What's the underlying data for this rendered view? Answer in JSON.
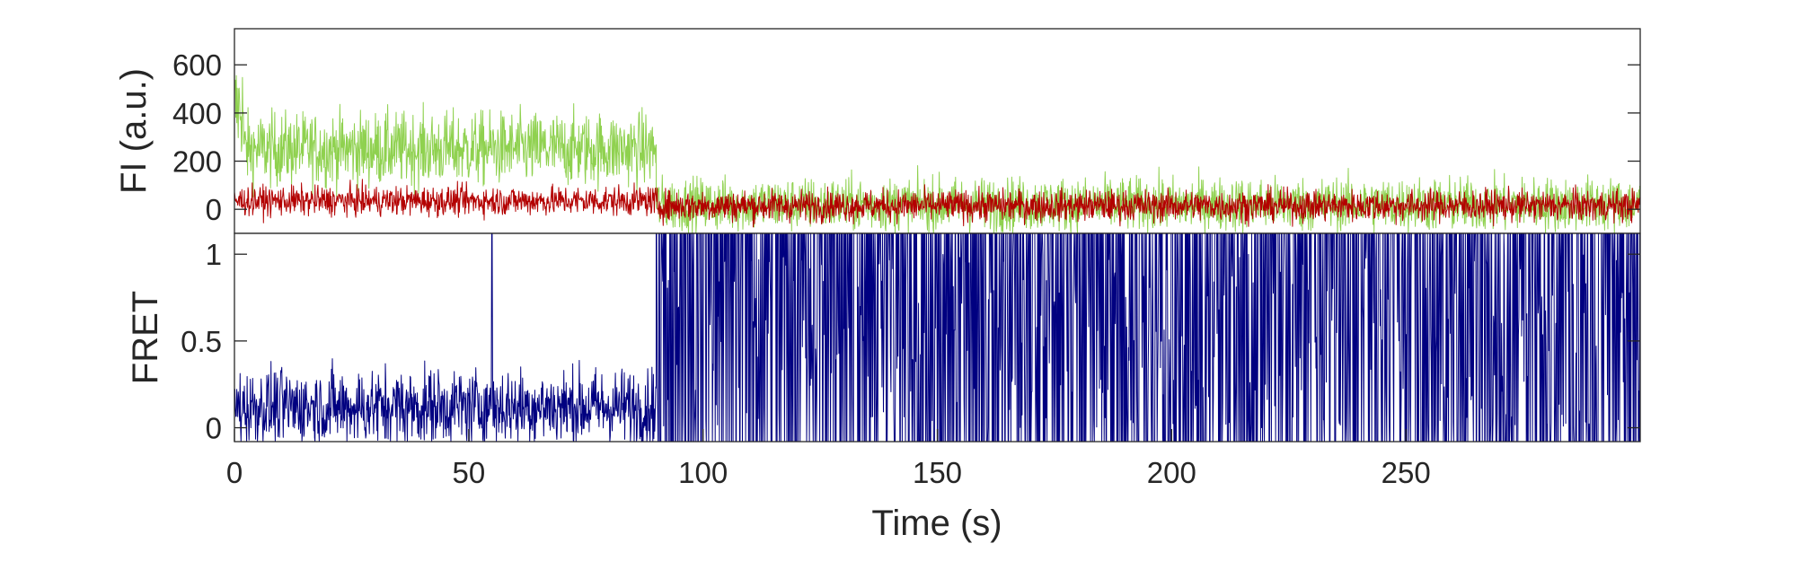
{
  "chart_data": [
    {
      "type": "line",
      "ylabel": "FI (a.u.)",
      "xlim": [
        0,
        300
      ],
      "ylim": [
        -100,
        750
      ],
      "yticks": [
        0,
        200,
        400,
        600
      ],
      "ytick_labels": [
        "0",
        "200",
        "400",
        "600"
      ],
      "grid": false,
      "series": [
        {
          "color": "#8fd14f",
          "segments": [
            {
              "t": [
                0,
                2
              ],
              "mean": 420,
              "noise": 110
            },
            {
              "t": [
                2,
                90
              ],
              "mean": 250,
              "noise": 75
            },
            {
              "t": [
                90,
                300
              ],
              "mean": 20,
              "noise": 55
            }
          ]
        },
        {
          "color": "#b30000",
          "segments": [
            {
              "t": [
                0,
                90
              ],
              "mean": 35,
              "noise": 30
            },
            {
              "t": [
                90,
                300
              ],
              "mean": 15,
              "noise": 32
            }
          ]
        }
      ]
    },
    {
      "type": "line",
      "ylabel": "FRET",
      "xlabel": "Time (s)",
      "xlim": [
        0,
        300
      ],
      "ylim": [
        -0.08,
        1.12
      ],
      "xticks": [
        0,
        50,
        100,
        150,
        200,
        250
      ],
      "xtick_labels": [
        "0",
        "50",
        "100",
        "150",
        "200",
        "250"
      ],
      "yticks": [
        0,
        0.5,
        1
      ],
      "ytick_labels": [
        "0",
        "0.5",
        "1"
      ],
      "grid": false,
      "series": [
        {
          "color": "#000080",
          "segments": [
            {
              "t": [
                0,
                90
              ],
              "mean": 0.12,
              "noise": 0.11,
              "spike_at": 55
            },
            {
              "t": [
                90,
                300
              ],
              "behavior": "rapid fluctuation between 0 and 1"
            }
          ]
        }
      ]
    }
  ]
}
